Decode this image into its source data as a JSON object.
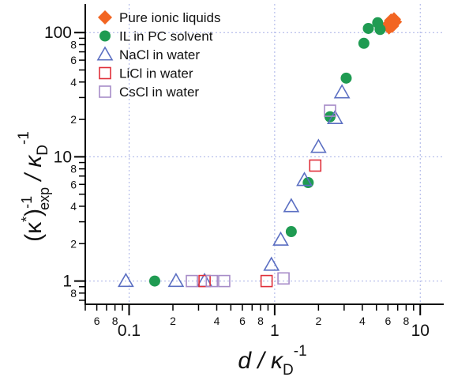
{
  "chart_data": {
    "type": "scatter",
    "x_scale": "log",
    "y_scale": "log",
    "xlim": [
      0.05,
      14.5
    ],
    "ylim": [
      0.65,
      170
    ],
    "grid": true,
    "legend_position": "top-left",
    "xlabel": {
      "main": "d / κ",
      "sub": "D",
      "sup": "-1"
    },
    "ylabel": {
      "p1": "(κ",
      "sup1": "*",
      "p2": ")",
      "sup2": "-1",
      "sub1": "exp",
      "p3": " / κ",
      "sub2": "D",
      "sup3": "-1"
    },
    "x_major_ticks": [
      {
        "value": 0.1,
        "label": "0.1"
      },
      {
        "value": 1,
        "label": "1"
      },
      {
        "value": 10,
        "label": "10"
      }
    ],
    "x_minor_labeled": [
      {
        "value": 0.06,
        "label": "6"
      },
      {
        "value": 0.08,
        "label": "8"
      },
      {
        "value": 0.2,
        "label": "2"
      },
      {
        "value": 0.4,
        "label": "4"
      },
      {
        "value": 0.6,
        "label": "6"
      },
      {
        "value": 0.8,
        "label": "8"
      },
      {
        "value": 2,
        "label": "2"
      },
      {
        "value": 4,
        "label": "4"
      },
      {
        "value": 6,
        "label": "6"
      },
      {
        "value": 8,
        "label": "8"
      }
    ],
    "y_major_ticks": [
      {
        "value": 1,
        "label": "1"
      },
      {
        "value": 10,
        "label": "10"
      },
      {
        "value": 100,
        "label": "100"
      }
    ],
    "y_minor_labeled": [
      {
        "value": 0.8,
        "label": "8"
      },
      {
        "value": 2,
        "label": "2"
      },
      {
        "value": 4,
        "label": "4"
      },
      {
        "value": 6,
        "label": "6"
      },
      {
        "value": 8,
        "label": "8"
      },
      {
        "value": 20,
        "label": "2"
      },
      {
        "value": 40,
        "label": "4"
      },
      {
        "value": 60,
        "label": "6"
      },
      {
        "value": 80,
        "label": "8"
      }
    ],
    "series": [
      {
        "name": "Pure ionic liquids",
        "marker": "diamond-filled",
        "color": "#f26522",
        "points": [
          [
            6.0,
            115
          ],
          [
            6.3,
            125
          ],
          [
            6.5,
            120
          ],
          [
            6.1,
            110
          ],
          [
            6.6,
            128
          ],
          [
            6.2,
            118
          ],
          [
            6.4,
            113
          ],
          [
            6.7,
            122
          ]
        ]
      },
      {
        "name": "IL in PC solvent",
        "marker": "circle-filled",
        "color": "#1f9b52",
        "points": [
          [
            0.15,
            1.0
          ],
          [
            1.3,
            2.5
          ],
          [
            1.7,
            6.2
          ],
          [
            2.4,
            21
          ],
          [
            3.1,
            43
          ],
          [
            4.1,
            82
          ],
          [
            4.4,
            108
          ],
          [
            5.1,
            120
          ],
          [
            5.3,
            106
          ]
        ]
      },
      {
        "name": "NaCl in water",
        "marker": "triangle-open",
        "color": "#5b6fc2",
        "points": [
          [
            0.095,
            1.0
          ],
          [
            0.21,
            1.0
          ],
          [
            0.33,
            1.0
          ],
          [
            0.95,
            1.35
          ],
          [
            1.1,
            2.15
          ],
          [
            1.3,
            4.0
          ],
          [
            1.6,
            6.5
          ],
          [
            2.0,
            12.0
          ],
          [
            2.6,
            20.5
          ],
          [
            2.9,
            33.0
          ]
        ]
      },
      {
        "name": "LiCl in water",
        "marker": "square-open",
        "color": "#e0303a",
        "points": [
          [
            0.33,
            1.0
          ],
          [
            0.88,
            1.0
          ],
          [
            1.9,
            8.5
          ]
        ]
      },
      {
        "name": "CsCl in water",
        "marker": "square-open",
        "color": "#a78cc8",
        "points": [
          [
            0.27,
            1.0
          ],
          [
            0.37,
            1.0
          ],
          [
            0.45,
            1.0
          ],
          [
            1.15,
            1.05
          ],
          [
            2.4,
            23.5
          ]
        ]
      }
    ]
  }
}
